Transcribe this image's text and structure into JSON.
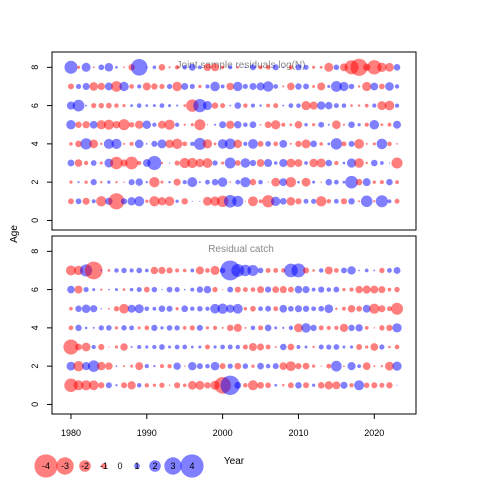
{
  "chart_data": [
    {
      "type": "scatter",
      "subtype": "bubble",
      "title": "Joint sample residuals log(N)",
      "ylabel": "Age",
      "xlim": [
        1977.5,
        2025.5
      ],
      "ylim": [
        -0.5,
        8.8
      ],
      "yticks": [
        "0",
        "2",
        "4",
        "6",
        "8"
      ],
      "ages": [
        1,
        2,
        3,
        4,
        5,
        6,
        7,
        8
      ],
      "years": [
        1980,
        2023
      ],
      "grid": false,
      "color_positive": "#0000ff",
      "color_negative": "#ff0000",
      "values": [
        [
          -0.94,
          0.94,
          -1.14,
          0.65,
          -1.67,
          1.18,
          -2.59,
          1.0,
          1.34,
          1.61,
          -0.52,
          -1.66,
          -1.35,
          -1.54,
          0.53,
          -1.04,
          0.17,
          0.13,
          -1.45,
          -1.54,
          -1.84,
          2.04,
          1.79,
          -0.12,
          -1.59,
          -0.62,
          -1.98,
          1.52,
          1.08,
          -1.39,
          -0.99,
          0.79,
          0.84,
          -1.68,
          -0.72,
          0.77,
          -0.99,
          1.04,
          -0.35,
          1.86,
          -0.37,
          1.95,
          0.63,
          -0.8
        ],
        [
          -0.53,
          0.35,
          -0.54,
          1.0,
          -0.4,
          0.52,
          -0.38,
          -0.24,
          0.99,
          1.2,
          0.37,
          -1.68,
          -0.49,
          0.39,
          -1.15,
          0.69,
          1.61,
          0.33,
          0.78,
          1.05,
          1.53,
          -0.27,
          0.78,
          1.64,
          -1.04,
          0.73,
          -0.22,
          -1.42,
          1.27,
          -1.68,
          0.43,
          -1.43,
          0.49,
          -0.25,
          1.06,
          0.76,
          0.47,
          2.04,
          -1.05,
          1.28,
          -0.55,
          -0.66,
          1.04,
          -0.61
        ],
        [
          1.1,
          -1.23,
          -0.69,
          0.93,
          -0.49,
          1.43,
          -2.01,
          -1.16,
          -2.07,
          -0.69,
          1.24,
          2.26,
          -0.38,
          0.21,
          -0.83,
          -1.66,
          -1.65,
          -1.37,
          -1.57,
          0.85,
          -0.5,
          1.76,
          -0.92,
          1.53,
          1.01,
          -1.24,
          1.29,
          0.57,
          1.31,
          -1.43,
          -1.26,
          0.6,
          -1.37,
          -1.46,
          1.06,
          -0.7,
          0.44,
          1.49,
          -1.54,
          -0.4,
          1.06,
          0.6,
          0.16,
          -1.79
        ],
        [
          -0.57,
          -1.06,
          1.8,
          -1.4,
          -0.4,
          1.62,
          1.64,
          -0.34,
          -0.66,
          1.39,
          0.27,
          0.99,
          1.45,
          -1.37,
          -1.68,
          -0.78,
          0.7,
          1.93,
          -1.51,
          -0.45,
          1.55,
          1.74,
          -1.37,
          0.67,
          1.58,
          -0.95,
          0.93,
          -0.75,
          1.26,
          -0.34,
          -1.02,
          -1.45,
          1.1,
          -0.58,
          0.44,
          1.84,
          -0.82,
          0.96,
          -1.57,
          -0.33,
          -0.5,
          1.7,
          -0.74,
          -0.28
        ],
        [
          1.51,
          -1.04,
          -1.18,
          1.25,
          -1.48,
          -1.63,
          -1.22,
          -1.8,
          -0.88,
          -1.34,
          1.37,
          0.68,
          -1.27,
          -1.66,
          0.69,
          -0.37,
          -0.5,
          -1.78,
          -0.15,
          0.34,
          1.12,
          -1.32,
          1.21,
          0.73,
          1.08,
          -0.28,
          -1.08,
          -1.5,
          -0.64,
          -0.43,
          -1.21,
          0.55,
          -0.51,
          0.94,
          0.32,
          -1.4,
          -0.35,
          1.06,
          0.52,
          -0.66,
          1.53,
          -0.44,
          -0.62,
          1.28
        ],
        [
          1.32,
          1.89,
          0.31,
          -0.84,
          -0.88,
          -0.91,
          -0.72,
          -0.51,
          0.45,
          0.75,
          0.44,
          0.46,
          0.77,
          0.49,
          0.35,
          -0.44,
          -2.0,
          2.14,
          1.46,
          -1.04,
          -0.8,
          0.28,
          1.06,
          -0.72,
          0.67,
          0.4,
          -0.62,
          -0.81,
          0.3,
          0.76,
          0.73,
          -1.47,
          -1.31,
          1.35,
          1.21,
          0.79,
          0.73,
          -0.42,
          -0.4,
          -0.61,
          0.66,
          -1.45,
          -1.56,
          0.69
        ],
        [
          -0.96,
          0.83,
          1.14,
          -1.38,
          -1.18,
          1.28,
          -1.73,
          1.52,
          -0.76,
          0.66,
          -1.29,
          -1.03,
          -0.85,
          0.85,
          -1.53,
          1.13,
          0.83,
          -0.53,
          0.65,
          1.54,
          0.62,
          -1.21,
          1.52,
          0.82,
          1.13,
          1.3,
          1.68,
          0.76,
          -0.34,
          -1.22,
          1.03,
          0.95,
          -0.46,
          -1.26,
          0.49,
          1.74,
          1.49,
          0.89,
          -0.4,
          -1.48,
          1.25,
          -0.92,
          1.4,
          0.71
        ],
        [
          2.1,
          -0.5,
          1.45,
          -0.3,
          0.92,
          1.37,
          0.44,
          -0.29,
          -1.04,
          2.68,
          0.25,
          0.57,
          -1.06,
          -0.35,
          -0.7,
          0.73,
          1.1,
          0.63,
          -1.2,
          -1.28,
          -0.56,
          0.66,
          -0.43,
          0.3,
          0.96,
          -0.68,
          -0.76,
          0.97,
          0.27,
          -0.72,
          0.98,
          0.81,
          -0.5,
          -0.48,
          -1.45,
          0.9,
          -1.26,
          -2.28,
          -2.77,
          -1.19,
          -2.32,
          -1.52,
          -1.42,
          1.06
        ]
      ]
    },
    {
      "type": "scatter",
      "subtype": "bubble",
      "title": "Residual catch",
      "xlabel": "Year",
      "ylabel": "Age",
      "xlim": [
        1977.5,
        2025.5
      ],
      "ylim": [
        -0.5,
        8.8
      ],
      "xticks": [
        "1980",
        "1990",
        "2000",
        "2010",
        "2020"
      ],
      "yticks": [
        "0",
        "2",
        "4",
        "6",
        "8"
      ],
      "ages": [
        1,
        2,
        3,
        4,
        5,
        6,
        7
      ],
      "years": [
        1980,
        2023
      ],
      "grid": false,
      "color_positive": "#0000ff",
      "color_negative": "#ff0000",
      "values": [
        [
          -2.17,
          -1.62,
          -1.64,
          -1.58,
          -1.01,
          0.96,
          0.36,
          -0.96,
          -1.34,
          0.73,
          -0.7,
          -0.52,
          -0.85,
          -0.24,
          -0.99,
          -0.58,
          -1.39,
          -1.44,
          -1.04,
          -1.48,
          -2.68,
          3.12,
          1.11,
          -0.73,
          -1.62,
          -1.1,
          -0.92,
          0.44,
          -0.4,
          -0.94,
          1.05,
          -0.96,
          0.53,
          -1.07,
          -1.35,
          -1.27,
          1.15,
          -0.71,
          1.62,
          -0.89,
          -0.98,
          -0.81,
          -1.02,
          0.11
        ],
        [
          1.42,
          -1.68,
          1.32,
          1.85,
          -1.37,
          -1.21,
          0.28,
          -0.35,
          -0.48,
          -1.28,
          0.69,
          0.37,
          -0.66,
          -0.7,
          1.19,
          -0.23,
          1.35,
          0.97,
          0.74,
          1.38,
          -0.96,
          0.84,
          -1.07,
          0.88,
          -0.55,
          1.08,
          0.72,
          0.97,
          -1.24,
          -1.59,
          -1.0,
          -1.09,
          -0.52,
          -0.21,
          -0.79,
          1.73,
          -0.29,
          1.32,
          0.62,
          -1.26,
          -0.32,
          -0.37,
          -1.44,
          1.49
        ],
        [
          -2.43,
          -1.1,
          -1.42,
          0.7,
          -1.0,
          -0.21,
          -0.51,
          -1.21,
          0.33,
          0.66,
          0.52,
          0.7,
          0.92,
          0.48,
          0.77,
          0.76,
          0.43,
          0.49,
          -0.8,
          0.51,
          0.76,
          0.79,
          0.71,
          -0.82,
          -1.29,
          -1.12,
          -0.8,
          -0.32,
          1.05,
          -1.08,
          0.64,
          0.47,
          -0.39,
          0.8,
          0.83,
          0.93,
          0.47,
          0.51,
          -0.96,
          -0.53,
          -1.24,
          0.84,
          -0.42,
          -0.76
        ],
        [
          -0.76,
          1.03,
          0.41,
          0.31,
          0.85,
          0.9,
          -0.53,
          0.88,
          0.78,
          -0.48,
          -0.75,
          1.0,
          0.53,
          0.9,
          0.85,
          -0.59,
          -0.83,
          0.98,
          -0.51,
          -0.67,
          -0.34,
          -1.05,
          -1.31,
          -0.32,
          0.73,
          -0.82,
          1.09,
          0.47,
          0.36,
          0.71,
          -1.43,
          1.53,
          1.02,
          -0.79,
          -0.68,
          -0.68,
          -1.33,
          1.03,
          1.19,
          -0.61,
          -0.24,
          -0.87,
          -1.02,
          1.51
        ],
        [
          -0.58,
          1.04,
          1.38,
          1.17,
          0.23,
          -0.3,
          -0.86,
          -1.56,
          1.28,
          1.46,
          0.74,
          0.61,
          1.06,
          0.97,
          -0.52,
          1.07,
          0.71,
          0.88,
          0.68,
          1.56,
          1.67,
          1.34,
          1.58,
          -0.56,
          -0.92,
          0.77,
          0.95,
          -0.78,
          1.24,
          0.92,
          1.13,
          1.02,
          0.77,
          0.91,
          1.4,
          -0.39,
          -0.63,
          -1.2,
          -0.92,
          1.27,
          -1.64,
          -1.13,
          -0.8,
          -1.93
        ],
        [
          1.22,
          -1.29,
          0.83,
          0.49,
          -0.37,
          0.26,
          0.49,
          -0.44,
          0.57,
          0.8,
          -0.92,
          0.89,
          0.21,
          0.93,
          0.84,
          0.27,
          0.64,
          1.03,
          1.2,
          -0.86,
          -0.18,
          0.95,
          -0.96,
          -0.79,
          -0.75,
          -1.13,
          0.99,
          -1.09,
          -1.15,
          -0.94,
          1.22,
          1.14,
          0.62,
          1.0,
          0.73,
          0.94,
          -0.53,
          -0.66,
          -1.2,
          -1.32,
          -1.28,
          -1.13,
          -0.6,
          -0.87
        ],
        [
          -1.61,
          -1.52,
          1.97,
          -2.86,
          0.27,
          -0.43,
          0.73,
          0.86,
          0.66,
          0.91,
          0.59,
          -1.2,
          -1.16,
          -0.99,
          -0.65,
          -0.58,
          0.61,
          -1.3,
          -0.76,
          -1.46,
          0.89,
          3.21,
          2.08,
          1.83,
          1.77,
          0.91,
          -0.8,
          -0.78,
          -0.7,
          2.2,
          2.24,
          -0.98,
          -0.42,
          0.73,
          -1.26,
          -0.76,
          0.95,
          1.36,
          0.26,
          0.6,
          0.29,
          -0.86,
          0.77,
          1.11
        ]
      ]
    }
  ],
  "legend": {
    "placement": "bottom-left",
    "entries": [
      "-4",
      "-3",
      "-2",
      "-1",
      "0",
      "1",
      "2",
      "3",
      "4"
    ],
    "values": [
      -4,
      -3,
      -2,
      -1,
      0,
      1,
      2,
      3,
      4
    ]
  },
  "shared_axis": {
    "ylabel": "Age",
    "xlabel": "Year"
  }
}
